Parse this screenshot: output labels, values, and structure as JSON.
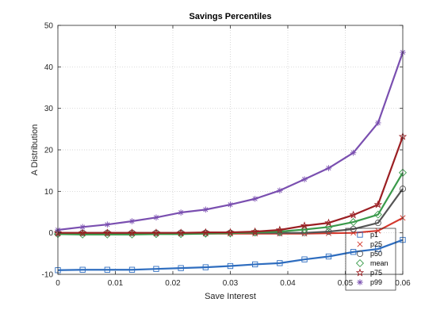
{
  "chart_data": {
    "type": "line",
    "title": "Savings Percentiles",
    "xlabel": "Save Interest",
    "ylabel": "A Distribution",
    "xlim": [
      0,
      0.06
    ],
    "ylim": [
      -10,
      50
    ],
    "x_ticks": [
      0,
      0.01,
      0.02,
      0.03,
      0.04,
      0.05,
      0.06
    ],
    "x_tick_labels": [
      "0",
      "0.01",
      "0.02",
      "0.03",
      "0.04",
      "0.05",
      "0.06"
    ],
    "y_ticks": [
      -10,
      0,
      10,
      20,
      30,
      40,
      50
    ],
    "y_tick_labels": [
      "-10",
      "0",
      "10",
      "20",
      "30",
      "40",
      "50"
    ],
    "grid": "dotted",
    "legend_position": "bottom-right",
    "x": [
      0,
      0.0043,
      0.0086,
      0.0129,
      0.0171,
      0.0214,
      0.0257,
      0.03,
      0.0343,
      0.0386,
      0.0429,
      0.0471,
      0.0514,
      0.0557,
      0.06
    ],
    "series": [
      {
        "name": "p1",
        "color": "#2e6dbf",
        "marker": "square",
        "values": [
          -9.0,
          -8.9,
          -8.9,
          -8.9,
          -8.7,
          -8.5,
          -8.3,
          -8.0,
          -7.6,
          -7.3,
          -6.4,
          -5.7,
          -4.6,
          -3.9,
          -1.7
        ]
      },
      {
        "name": "p25",
        "color": "#d3382d",
        "marker": "x",
        "values": [
          -0.2,
          -0.2,
          -0.2,
          -0.2,
          -0.2,
          -0.2,
          -0.2,
          -0.2,
          -0.2,
          -0.2,
          -0.2,
          -0.1,
          0.0,
          0.5,
          3.6
        ]
      },
      {
        "name": "p50",
        "color": "#555555",
        "marker": "circle",
        "values": [
          0.0,
          0.0,
          0.0,
          0.0,
          0.0,
          0.0,
          0.0,
          0.0,
          0.0,
          0.0,
          0.0,
          0.3,
          0.9,
          2.4,
          10.6
        ]
      },
      {
        "name": "mean",
        "color": "#3a9a4b",
        "marker": "diamond",
        "values": [
          -0.3,
          -0.4,
          -0.4,
          -0.4,
          -0.3,
          -0.3,
          -0.2,
          -0.1,
          0.1,
          0.3,
          0.8,
          1.4,
          2.6,
          4.4,
          14.5
        ]
      },
      {
        "name": "p75",
        "color": "#9b1f23",
        "marker": "star",
        "values": [
          0.0,
          0.0,
          0.0,
          0.0,
          0.0,
          0.0,
          0.1,
          0.1,
          0.3,
          0.7,
          1.7,
          2.4,
          4.3,
          6.8,
          23.2
        ]
      },
      {
        "name": "p99",
        "color": "#7a4fb0",
        "marker": "asterisk",
        "values": [
          0.7,
          1.4,
          2.0,
          2.8,
          3.7,
          4.9,
          5.6,
          6.8,
          8.2,
          10.2,
          12.9,
          15.6,
          19.3,
          26.5,
          43.5
        ]
      }
    ]
  }
}
